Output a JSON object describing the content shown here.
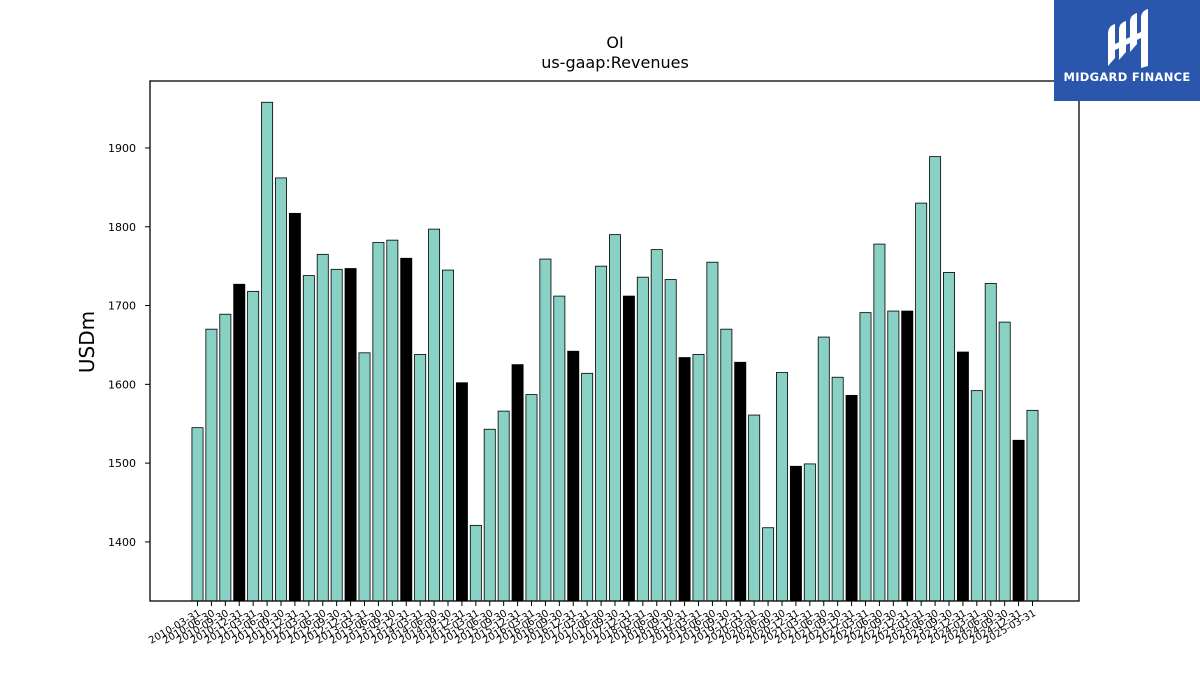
{
  "brand": {
    "name": "MIDGARD FINANCE",
    "bg_color": "#2a57ab"
  },
  "chart_data": {
    "type": "bar",
    "title": "OI",
    "subtitle": "us-gaap:Revenues",
    "ylabel": "USDm",
    "xlabel": "",
    "ylim": [
      1325,
      1985
    ],
    "yticks": [
      1400,
      1500,
      1600,
      1700,
      1800,
      1900
    ],
    "colors": {
      "quarterly": "#88d1c4",
      "fiscal_year_end": "#000000"
    },
    "categories": [
      "2010-03-31",
      "2010-06-30",
      "2010-09-30",
      "2010-12-31",
      "2011-03-31",
      "2011-06-30",
      "2011-09-30",
      "2011-12-31",
      "2012-03-31",
      "2012-06-30",
      "2012-09-30",
      "2012-12-31",
      "2013-03-31",
      "2013-06-30",
      "2013-09-30",
      "2013-12-31",
      "2014-03-31",
      "2014-06-30",
      "2014-09-30",
      "2014-12-31",
      "2015-03-31",
      "2015-06-30",
      "2015-09-30",
      "2015-12-31",
      "2016-03-31",
      "2016-06-30",
      "2016-09-30",
      "2016-12-31",
      "2017-03-31",
      "2017-06-30",
      "2017-09-30",
      "2017-12-31",
      "2018-03-31",
      "2018-06-30",
      "2018-09-30",
      "2018-12-31",
      "2019-03-31",
      "2019-06-30",
      "2019-09-30",
      "2019-12-31",
      "2020-03-31",
      "2020-06-30",
      "2020-09-30",
      "2020-12-31",
      "2021-03-31",
      "2021-06-30",
      "2021-09-30",
      "2021-12-31",
      "2022-03-31",
      "2022-06-30",
      "2022-09-30",
      "2022-12-31",
      "2023-03-31",
      "2023-06-30",
      "2023-09-30",
      "2023-12-31",
      "2024-03-31",
      "2024-06-30",
      "2024-09-30",
      "2024-12-31",
      "2025-03-31"
    ],
    "values": [
      1545,
      1670,
      1689,
      1727,
      1718,
      1958,
      1862,
      1817,
      1738,
      1765,
      1746,
      1747,
      1640,
      1780,
      1783,
      1760,
      1638,
      1797,
      1745,
      1602,
      1421,
      1543,
      1566,
      1625,
      1587,
      1759,
      1712,
      1642,
      1614,
      1750,
      1790,
      1712,
      1736,
      1771,
      1733,
      1634,
      1638,
      1755,
      1670,
      1628,
      1561,
      1418,
      1615,
      1496,
      1499,
      1660,
      1609,
      1586,
      1691,
      1778,
      1693,
      1693,
      1830,
      1889,
      1742,
      1641,
      1592,
      1728,
      1679,
      1529,
      1567
    ],
    "fiscal_year_end": [
      false,
      false,
      false,
      true,
      false,
      false,
      false,
      true,
      false,
      false,
      false,
      true,
      false,
      false,
      false,
      true,
      false,
      false,
      false,
      true,
      false,
      false,
      false,
      true,
      false,
      false,
      false,
      true,
      false,
      false,
      false,
      true,
      false,
      false,
      false,
      true,
      false,
      false,
      false,
      true,
      false,
      false,
      false,
      true,
      false,
      false,
      false,
      true,
      false,
      false,
      false,
      true,
      false,
      false,
      false,
      true,
      false,
      false,
      false,
      true,
      false
    ]
  }
}
